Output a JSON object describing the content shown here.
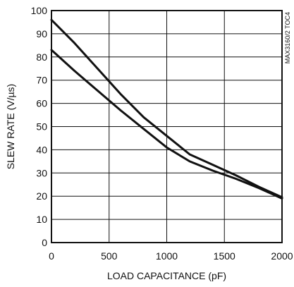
{
  "chart_data": {
    "type": "line",
    "title": "",
    "xlabel": "LOAD CAPACITANCE (pF)",
    "ylabel": "SLEW RATE (V/µs)",
    "side_note": "MAX3160/2 TOC4",
    "xlim": [
      0,
      2000
    ],
    "ylim": [
      0,
      100
    ],
    "xticks": [
      0,
      500,
      1000,
      1500,
      2000
    ],
    "yticks": [
      0,
      10,
      20,
      30,
      40,
      50,
      60,
      70,
      80,
      90,
      100
    ],
    "grid": true,
    "legend": "none",
    "line_color": "#111111",
    "series": [
      {
        "x": [
          0,
          200,
          400,
          600,
          800,
          1000,
          1200,
          1400,
          1600,
          1800,
          2000
        ],
        "values": [
          96,
          86,
          75,
          64,
          54,
          46,
          38,
          33.5,
          29,
          24,
          19.5
        ]
      },
      {
        "x": [
          0,
          200,
          400,
          600,
          800,
          1000,
          1200,
          1400,
          1600,
          1800,
          2000
        ],
        "values": [
          83,
          74,
          65.5,
          57,
          49,
          41,
          35,
          31,
          27.5,
          23.5,
          19
        ]
      }
    ]
  }
}
